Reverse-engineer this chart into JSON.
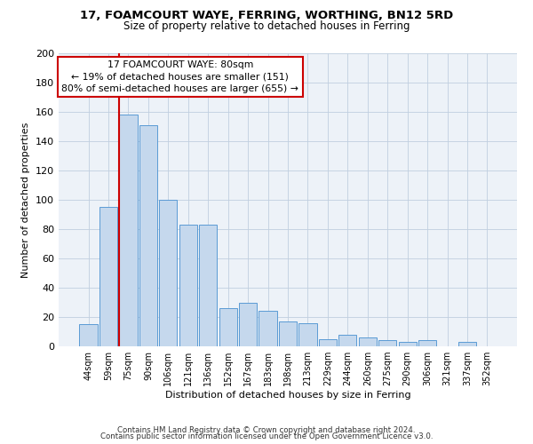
{
  "title": "17, FOAMCOURT WAYE, FERRING, WORTHING, BN12 5RD",
  "subtitle": "Size of property relative to detached houses in Ferring",
  "xlabel": "Distribution of detached houses by size in Ferring",
  "ylabel": "Number of detached properties",
  "bar_labels": [
    "44sqm",
    "59sqm",
    "75sqm",
    "90sqm",
    "106sqm",
    "121sqm",
    "136sqm",
    "152sqm",
    "167sqm",
    "183sqm",
    "198sqm",
    "213sqm",
    "229sqm",
    "244sqm",
    "260sqm",
    "275sqm",
    "290sqm",
    "306sqm",
    "321sqm",
    "337sqm",
    "352sqm"
  ],
  "bar_values": [
    15,
    95,
    158,
    151,
    100,
    83,
    83,
    26,
    30,
    24,
    17,
    16,
    5,
    8,
    6,
    4,
    3,
    4,
    0,
    3,
    0
  ],
  "bar_color": "#c5d8ed",
  "bar_edge_color": "#5b9bd5",
  "marker_label": "17 FOAMCOURT WAYE: 80sqm",
  "annotation_line1": "← 19% of detached houses are smaller (151)",
  "annotation_line2": "80% of semi-detached houses are larger (655) →",
  "annotation_box_color": "#ffffff",
  "annotation_box_edge_color": "#cc0000",
  "vline_color": "#cc0000",
  "ylim": [
    0,
    200
  ],
  "yticks": [
    0,
    20,
    40,
    60,
    80,
    100,
    120,
    140,
    160,
    180,
    200
  ],
  "grid_color": "#c0cfdf",
  "bg_color": "#edf2f8",
  "footer1": "Contains HM Land Registry data © Crown copyright and database right 2024.",
  "footer2": "Contains public sector information licensed under the Open Government Licence v3.0."
}
